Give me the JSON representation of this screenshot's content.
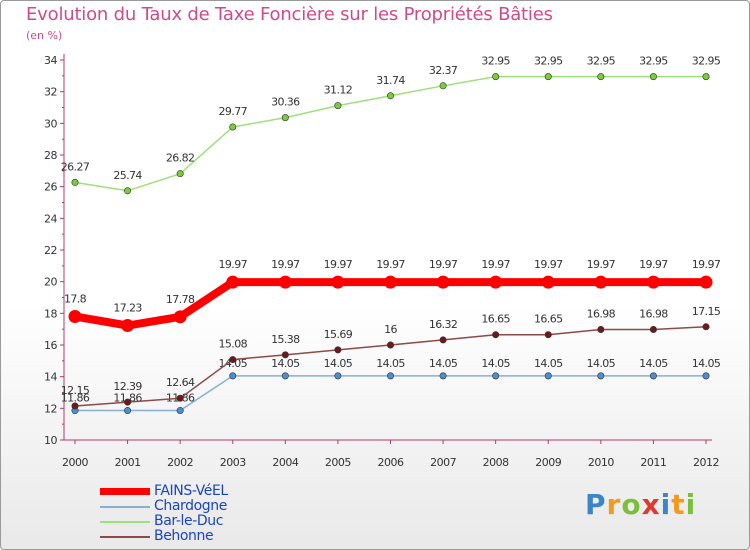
{
  "header": {
    "title": "Evolution du Taux de Taxe Foncière sur les Propriétés Bâties",
    "unit": "(en %)"
  },
  "chart_data": {
    "type": "line",
    "title": "Evolution du Taux de Taxe Foncière sur les Propriétés Bâties",
    "ylabel": "(en %)",
    "xlabel": "",
    "ylim": [
      10,
      34
    ],
    "yticks": [
      10,
      12,
      14,
      16,
      18,
      20,
      22,
      24,
      26,
      28,
      30,
      32,
      34
    ],
    "x": [
      2000,
      2001,
      2002,
      2003,
      2004,
      2005,
      2006,
      2007,
      2008,
      2009,
      2010,
      2011,
      2012
    ],
    "grid": false,
    "series": [
      {
        "name": "FAINS-VéEL",
        "color": "#ff0000",
        "marker": "#ff0000",
        "values": [
          17.8,
          17.23,
          17.78,
          19.97,
          19.97,
          19.97,
          19.97,
          19.97,
          19.97,
          19.97,
          19.97,
          19.97,
          19.97
        ],
        "labels": [
          "17.8",
          "17.23",
          "17.78",
          "19.97",
          "19.97",
          "19.97",
          "19.97",
          "19.97",
          "19.97",
          "19.97",
          "19.97",
          "19.97",
          "19.97"
        ]
      },
      {
        "name": "Chardogne",
        "color": "#87b0d4",
        "marker": "#4a8fcf",
        "values": [
          11.86,
          11.86,
          11.86,
          14.05,
          14.05,
          14.05,
          14.05,
          14.05,
          14.05,
          14.05,
          14.05,
          14.05,
          14.05
        ],
        "labels": [
          "11.86",
          "11.86",
          "11.86",
          "14.05",
          "14.05",
          "14.05",
          "14.05",
          "14.05",
          "14.05",
          "14.05",
          "14.05",
          "14.05",
          "14.05"
        ]
      },
      {
        "name": "Bar-le-Duc",
        "color": "#9ee07a",
        "marker": "#7acc3a",
        "values": [
          26.27,
          25.74,
          26.82,
          29.77,
          30.36,
          31.12,
          31.74,
          32.37,
          32.95,
          32.95,
          32.95,
          32.95,
          32.95
        ],
        "labels": [
          "26.27",
          "25.74",
          "26.82",
          "29.77",
          "30.36",
          "31.12",
          "31.74",
          "32.37",
          "32.95",
          "32.95",
          "32.95",
          "32.95",
          "32.95"
        ]
      },
      {
        "name": "Behonne",
        "color": "#8c4a4a",
        "marker": "#6e1a1a",
        "values": [
          12.15,
          12.39,
          12.64,
          15.08,
          15.38,
          15.69,
          16,
          16.32,
          16.65,
          16.65,
          16.98,
          16.98,
          17.15
        ],
        "labels": [
          "12.15",
          "12.39",
          "12.64",
          "15.08",
          "15.38",
          "15.69",
          "16",
          "16.32",
          "16.65",
          "16.65",
          "16.98",
          "16.98",
          "17.15"
        ]
      }
    ]
  },
  "legend": {
    "items": [
      {
        "label": "FAINS-VéEL",
        "color": "#ff0000"
      },
      {
        "label": "Chardogne",
        "color": "#87b0d4"
      },
      {
        "label": "Bar-le-Duc",
        "color": "#9ee07a"
      },
      {
        "label": "Behonne",
        "color": "#8c4a4a"
      }
    ]
  },
  "logo": {
    "letters": [
      "P",
      "r",
      "o",
      "x",
      "i",
      "t",
      "i"
    ],
    "colors": [
      "#3a86c8",
      "#f29a1f",
      "#7cbf3a",
      "#e03a2f",
      "#3a86c8",
      "#f29a1f",
      "#7cbf3a"
    ]
  }
}
